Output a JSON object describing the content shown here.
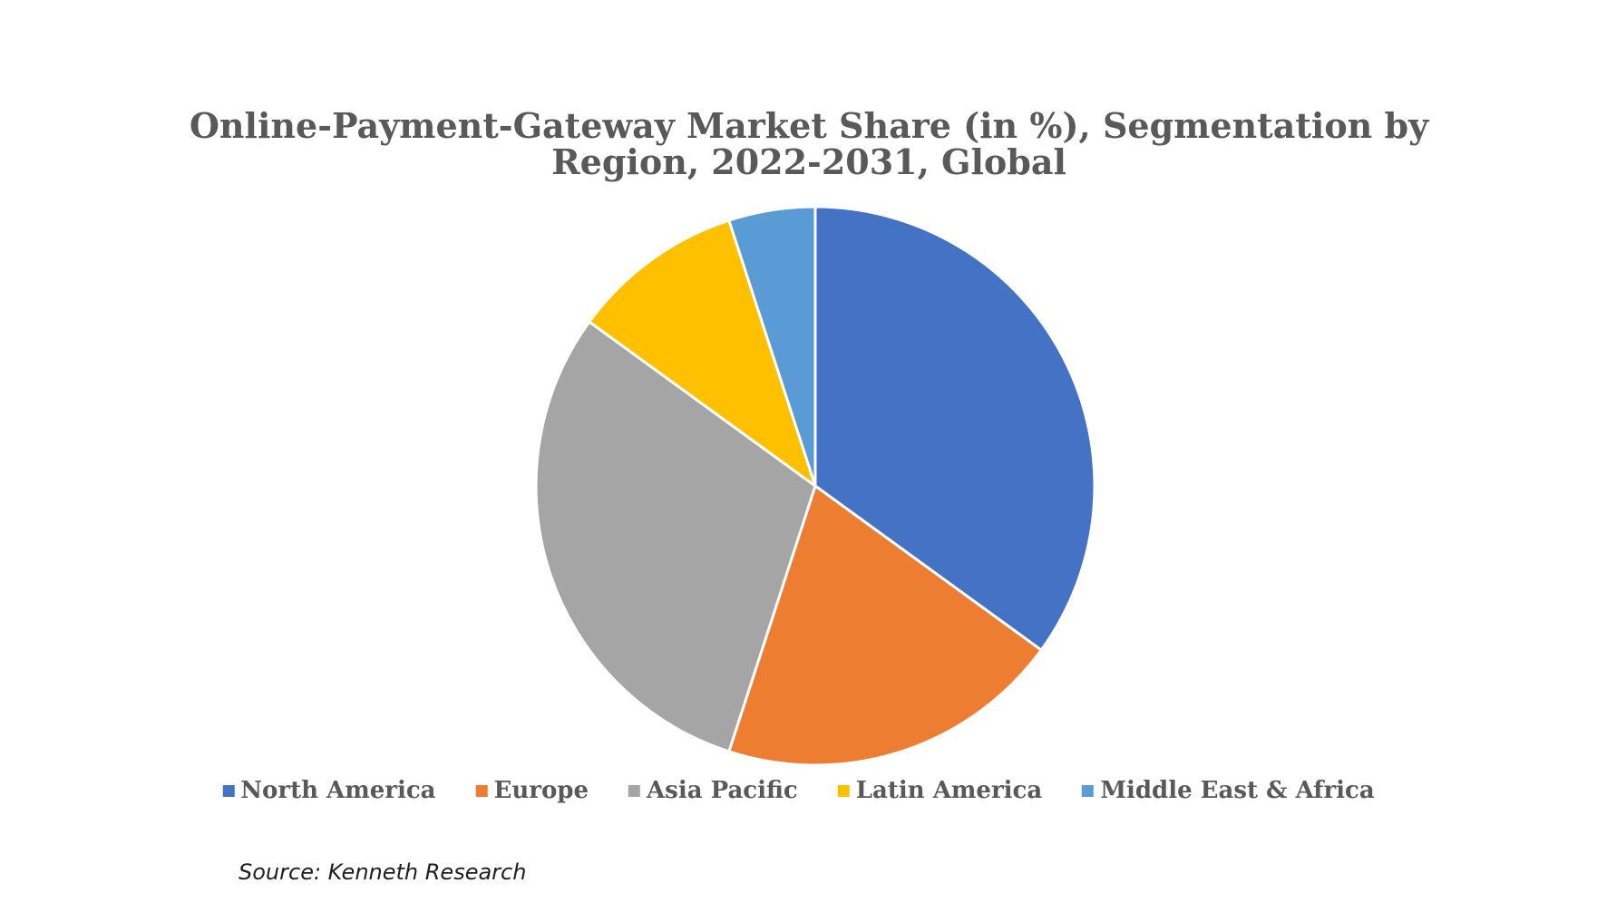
{
  "title": {
    "line1": "Online-Payment-Gateway Market Share (in %), Segmentation by",
    "line2": "Region, 2022-2031, Global",
    "full": "Online-Payment-Gateway Market Share (in %), Segmentation by Region, 2022-2031, Global",
    "color": "#595959"
  },
  "source_note": "Source: Kenneth Research",
  "chart_data": {
    "type": "pie",
    "title": "Online-Payment-Gateway Market Share (in %), Segmentation by Region, 2022-2031, Global",
    "categories": [
      "North America",
      "Europe",
      "Asia Pacific",
      "Latin America",
      "Middle East & Africa"
    ],
    "values": [
      35,
      20,
      30,
      10,
      5
    ],
    "unit": "%",
    "colors": [
      "#4472C4",
      "#ED7D31",
      "#A5A5A5",
      "#FFC000",
      "#5B9BD5"
    ],
    "start_angle_deg": 0,
    "direction": "clockwise",
    "data_labels": "none",
    "legend_position": "bottom",
    "slice_border_color": "#FFFFFF",
    "slice_border_width": 3,
    "source": "Kenneth Research"
  }
}
